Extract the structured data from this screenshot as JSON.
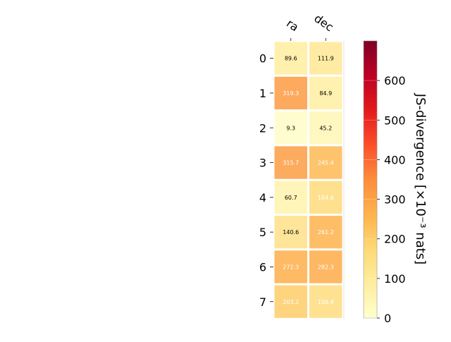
{
  "chart_data": {
    "type": "heatmap",
    "columns": [
      "ra",
      "dec"
    ],
    "rows": [
      "0",
      "1",
      "2",
      "3",
      "4",
      "5",
      "6",
      "7"
    ],
    "values": [
      [
        89.6,
        111.9
      ],
      [
        319.3,
        84.9
      ],
      [
        9.3,
        45.2
      ],
      [
        315.7,
        245.4
      ],
      [
        60.7,
        164.6
      ],
      [
        140.6,
        261.2
      ],
      [
        272.3,
        282.3
      ],
      [
        203.2,
        156.4
      ]
    ],
    "cell_labels": [
      [
        "89.6",
        "111.9"
      ],
      [
        "319.3",
        "84.9"
      ],
      [
        "9.3",
        "45.2"
      ],
      [
        "315.7",
        "245.4"
      ],
      [
        "60.7",
        "164.6"
      ],
      [
        "140.6",
        "261.2"
      ],
      [
        "272.3",
        "282.3"
      ],
      [
        "203.2",
        "156.4"
      ]
    ],
    "colorbar": {
      "label": "JS-divergence [×10⁻³ nats]",
      "range": [
        0,
        700
      ],
      "ticks": [
        "0",
        "100",
        "200",
        "300",
        "400",
        "500",
        "600"
      ],
      "tick_values": [
        0,
        100,
        200,
        300,
        400,
        500,
        600
      ],
      "colormap": "YlOrRd"
    },
    "grid": false,
    "legend": "colorbar-right"
  }
}
